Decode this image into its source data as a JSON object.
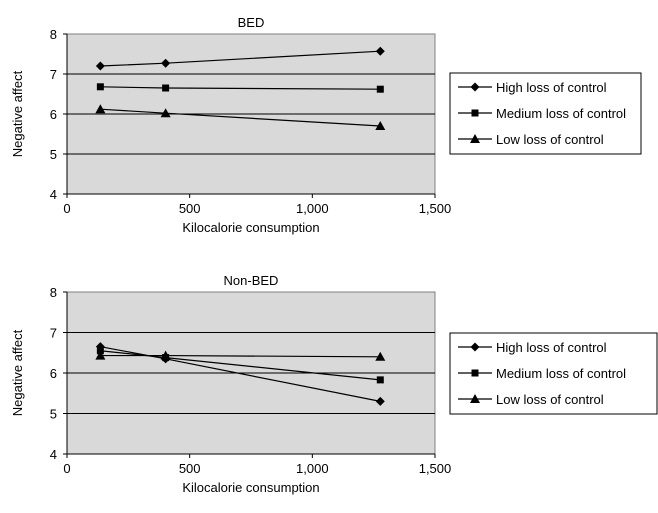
{
  "chart_data": [
    {
      "type": "line",
      "title": "BED",
      "xlabel": "Kilocalorie consumption",
      "ylabel": "Negative affect",
      "xlim": [
        0,
        1500
      ],
      "ylim": [
        4,
        8
      ],
      "xticks": [
        0,
        500,
        1000,
        1500
      ],
      "xtick_labels": [
        "0",
        "500",
        "1,000",
        "1,500"
      ],
      "yticks": [
        4,
        5,
        6,
        7,
        8
      ],
      "ytick_labels": [
        "4",
        "5",
        "6",
        "7",
        "8"
      ],
      "grid": true,
      "legend_position": "right",
      "series": [
        {
          "name": "High loss of control",
          "marker": "diamond",
          "x": [
            136,
            402,
            1277
          ],
          "y": [
            7.2,
            7.27,
            7.57
          ]
        },
        {
          "name": "Medium loss of control",
          "marker": "square",
          "x": [
            136,
            402,
            1277
          ],
          "y": [
            6.68,
            6.65,
            6.62
          ]
        },
        {
          "name": "Low loss of control",
          "marker": "triangle",
          "x": [
            136,
            402,
            1277
          ],
          "y": [
            6.12,
            6.02,
            5.7
          ]
        }
      ]
    },
    {
      "type": "line",
      "title": "Non-BED",
      "xlabel": "Kilocalorie consumption",
      "ylabel": "Negative affect",
      "xlim": [
        0,
        1500
      ],
      "ylim": [
        4,
        8
      ],
      "xticks": [
        0,
        500,
        1000,
        1500
      ],
      "xtick_labels": [
        "0",
        "500",
        "1,000",
        "1,500"
      ],
      "yticks": [
        4,
        5,
        6,
        7,
        8
      ],
      "ytick_labels": [
        "4",
        "5",
        "6",
        "7",
        "8"
      ],
      "grid": true,
      "legend_position": "right",
      "series": [
        {
          "name": "High loss of control",
          "marker": "diamond",
          "x": [
            136,
            402,
            1277
          ],
          "y": [
            6.65,
            6.35,
            5.3
          ]
        },
        {
          "name": "Medium loss of control",
          "marker": "square",
          "x": [
            136,
            402,
            1277
          ],
          "y": [
            6.55,
            6.38,
            5.83
          ]
        },
        {
          "name": "Low loss of control",
          "marker": "triangle",
          "x": [
            136,
            402,
            1277
          ],
          "y": [
            6.43,
            6.43,
            6.4
          ]
        }
      ]
    }
  ]
}
